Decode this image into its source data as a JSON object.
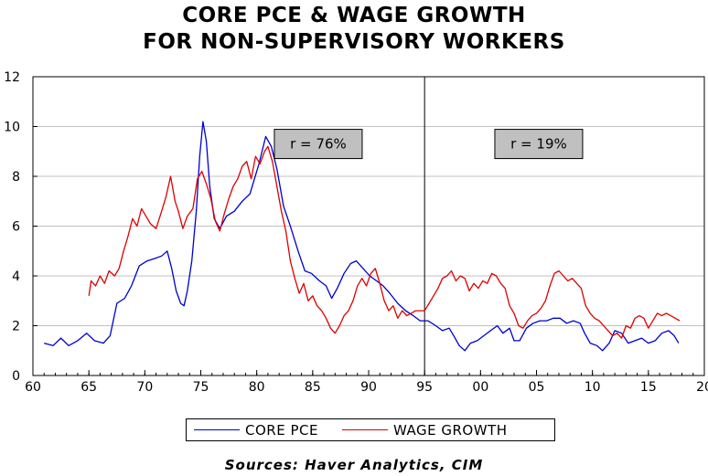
{
  "chart_data": {
    "type": "line",
    "title_lines": [
      "CORE PCE & WAGE GROWTH",
      "FOR NON-SUPERVISORY WORKERS"
    ],
    "xlabel": "",
    "ylabel": "",
    "xlim": [
      1960,
      2020
    ],
    "ylim": [
      0,
      12
    ],
    "x_tick_values": [
      1960,
      1965,
      1970,
      1975,
      1980,
      1985,
      1990,
      1995,
      2000,
      2005,
      2010,
      2015,
      2020
    ],
    "x_tick_labels": [
      "60",
      "65",
      "70",
      "75",
      "80",
      "85",
      "90",
      "95",
      "00",
      "05",
      "10",
      "15",
      "20"
    ],
    "y_ticks": [
      0,
      2,
      4,
      6,
      8,
      10,
      12
    ],
    "grid": true,
    "legend_position": "bottom",
    "divider_x": 1995,
    "annotations": [
      {
        "text": "r = 76%",
        "x": 1985.5,
        "y": 9.3
      },
      {
        "text": "r = 19%",
        "x": 2005.2,
        "y": 9.3
      }
    ],
    "source": "Sources:  Haver Analytics, CIM",
    "series": [
      {
        "name": "CORE PCE",
        "color": "#0000cc",
        "points": [
          [
            1961,
            1.3
          ],
          [
            1961.8,
            1.2
          ],
          [
            1962.5,
            1.5
          ],
          [
            1963.2,
            1.2
          ],
          [
            1964,
            1.4
          ],
          [
            1964.8,
            1.7
          ],
          [
            1965.5,
            1.4
          ],
          [
            1966.3,
            1.3
          ],
          [
            1966.9,
            1.6
          ],
          [
            1967.5,
            2.9
          ],
          [
            1968.2,
            3.1
          ],
          [
            1968.8,
            3.6
          ],
          [
            1969.5,
            4.4
          ],
          [
            1970.2,
            4.6
          ],
          [
            1970.9,
            4.7
          ],
          [
            1971.5,
            4.8
          ],
          [
            1972,
            5.0
          ],
          [
            1972.4,
            4.3
          ],
          [
            1972.8,
            3.4
          ],
          [
            1973.2,
            2.9
          ],
          [
            1973.5,
            2.8
          ],
          [
            1973.8,
            3.4
          ],
          [
            1974.2,
            4.6
          ],
          [
            1974.6,
            6.6
          ],
          [
            1974.9,
            8.8
          ],
          [
            1975.2,
            10.2
          ],
          [
            1975.5,
            9.4
          ],
          [
            1975.8,
            7.6
          ],
          [
            1976.2,
            6.3
          ],
          [
            1976.7,
            5.9
          ],
          [
            1977.3,
            6.4
          ],
          [
            1978,
            6.6
          ],
          [
            1978.7,
            7.0
          ],
          [
            1979.4,
            7.3
          ],
          [
            1980.2,
            8.5
          ],
          [
            1980.8,
            9.6
          ],
          [
            1981.3,
            9.2
          ],
          [
            1981.8,
            8.3
          ],
          [
            1982.4,
            6.8
          ],
          [
            1983,
            6.0
          ],
          [
            1983.7,
            5.0
          ],
          [
            1984.3,
            4.2
          ],
          [
            1984.9,
            4.1
          ],
          [
            1985.6,
            3.8
          ],
          [
            1986.2,
            3.6
          ],
          [
            1986.7,
            3.1
          ],
          [
            1987.2,
            3.5
          ],
          [
            1987.8,
            4.1
          ],
          [
            1988.4,
            4.5
          ],
          [
            1988.9,
            4.6
          ],
          [
            1989.5,
            4.3
          ],
          [
            1990.1,
            4.0
          ],
          [
            1990.7,
            3.8
          ],
          [
            1991.3,
            3.6
          ],
          [
            1991.9,
            3.3
          ],
          [
            1992.6,
            2.9
          ],
          [
            1993.3,
            2.6
          ],
          [
            1994,
            2.4
          ],
          [
            1994.6,
            2.2
          ],
          [
            1995.3,
            2.2
          ],
          [
            1996,
            2.0
          ],
          [
            1996.6,
            1.8
          ],
          [
            1997.2,
            1.9
          ],
          [
            1997.6,
            1.6
          ],
          [
            1998.1,
            1.2
          ],
          [
            1998.6,
            1.0
          ],
          [
            1999.1,
            1.3
          ],
          [
            1999.7,
            1.4
          ],
          [
            2000.3,
            1.6
          ],
          [
            2000.9,
            1.8
          ],
          [
            2001.5,
            2.0
          ],
          [
            2002,
            1.7
          ],
          [
            2002.6,
            1.9
          ],
          [
            2003,
            1.4
          ],
          [
            2003.5,
            1.4
          ],
          [
            2004.1,
            1.9
          ],
          [
            2004.7,
            2.1
          ],
          [
            2005.3,
            2.2
          ],
          [
            2005.9,
            2.2
          ],
          [
            2006.5,
            2.3
          ],
          [
            2007.1,
            2.3
          ],
          [
            2007.7,
            2.1
          ],
          [
            2008.3,
            2.2
          ],
          [
            2008.9,
            2.1
          ],
          [
            2009.3,
            1.7
          ],
          [
            2009.8,
            1.3
          ],
          [
            2010.4,
            1.2
          ],
          [
            2010.9,
            1.0
          ],
          [
            2011.5,
            1.3
          ],
          [
            2012,
            1.8
          ],
          [
            2012.6,
            1.7
          ],
          [
            2013.2,
            1.3
          ],
          [
            2013.8,
            1.4
          ],
          [
            2014.4,
            1.5
          ],
          [
            2015,
            1.3
          ],
          [
            2015.6,
            1.4
          ],
          [
            2016.2,
            1.7
          ],
          [
            2016.8,
            1.8
          ],
          [
            2017.3,
            1.6
          ],
          [
            2017.7,
            1.3
          ]
        ]
      },
      {
        "name": "WAGE GROWTH",
        "color": "#dd0000",
        "points": [
          [
            1965,
            3.2
          ],
          [
            1965.2,
            3.8
          ],
          [
            1965.6,
            3.6
          ],
          [
            1966,
            4.0
          ],
          [
            1966.4,
            3.7
          ],
          [
            1966.8,
            4.2
          ],
          [
            1967.3,
            4.0
          ],
          [
            1967.7,
            4.3
          ],
          [
            1968.1,
            5.0
          ],
          [
            1968.5,
            5.6
          ],
          [
            1968.9,
            6.3
          ],
          [
            1969.3,
            6.0
          ],
          [
            1969.7,
            6.7
          ],
          [
            1970.1,
            6.4
          ],
          [
            1970.5,
            6.1
          ],
          [
            1971,
            5.9
          ],
          [
            1971.5,
            6.6
          ],
          [
            1971.9,
            7.2
          ],
          [
            1972.3,
            8.0
          ],
          [
            1972.7,
            7.0
          ],
          [
            1973,
            6.6
          ],
          [
            1973.4,
            5.9
          ],
          [
            1973.8,
            6.4
          ],
          [
            1974.3,
            6.7
          ],
          [
            1974.7,
            7.9
          ],
          [
            1975.1,
            8.2
          ],
          [
            1975.5,
            7.7
          ],
          [
            1975.9,
            7.1
          ],
          [
            1976.3,
            6.2
          ],
          [
            1976.7,
            5.8
          ],
          [
            1977.1,
            6.5
          ],
          [
            1977.5,
            7.1
          ],
          [
            1977.9,
            7.6
          ],
          [
            1978.3,
            7.9
          ],
          [
            1978.7,
            8.4
          ],
          [
            1979.1,
            8.6
          ],
          [
            1979.5,
            7.9
          ],
          [
            1979.9,
            8.8
          ],
          [
            1980.3,
            8.5
          ],
          [
            1980.7,
            9.0
          ],
          [
            1981,
            9.2
          ],
          [
            1981.4,
            8.6
          ],
          [
            1981.8,
            7.6
          ],
          [
            1982.2,
            6.6
          ],
          [
            1982.6,
            5.8
          ],
          [
            1983,
            4.6
          ],
          [
            1983.4,
            3.9
          ],
          [
            1983.8,
            3.3
          ],
          [
            1984.2,
            3.7
          ],
          [
            1984.6,
            3.0
          ],
          [
            1985,
            3.2
          ],
          [
            1985.4,
            2.8
          ],
          [
            1985.8,
            2.6
          ],
          [
            1986.2,
            2.3
          ],
          [
            1986.6,
            1.9
          ],
          [
            1987,
            1.7
          ],
          [
            1987.4,
            2.0
          ],
          [
            1987.8,
            2.4
          ],
          [
            1988.2,
            2.6
          ],
          [
            1988.6,
            3.0
          ],
          [
            1989,
            3.6
          ],
          [
            1989.4,
            3.9
          ],
          [
            1989.8,
            3.6
          ],
          [
            1990.2,
            4.1
          ],
          [
            1990.6,
            4.3
          ],
          [
            1991,
            3.7
          ],
          [
            1991.4,
            3.0
          ],
          [
            1991.8,
            2.6
          ],
          [
            1992.2,
            2.8
          ],
          [
            1992.6,
            2.3
          ],
          [
            1993,
            2.6
          ],
          [
            1993.4,
            2.4
          ],
          [
            1993.8,
            2.5
          ],
          [
            1994.2,
            2.6
          ],
          [
            1994.6,
            2.6
          ],
          [
            1995,
            2.6
          ],
          [
            1995.4,
            2.9
          ],
          [
            1995.8,
            3.2
          ],
          [
            1996.2,
            3.5
          ],
          [
            1996.6,
            3.9
          ],
          [
            1997,
            4.0
          ],
          [
            1997.4,
            4.2
          ],
          [
            1997.8,
            3.8
          ],
          [
            1998.2,
            4.0
          ],
          [
            1998.6,
            3.9
          ],
          [
            1999,
            3.4
          ],
          [
            1999.4,
            3.7
          ],
          [
            1999.8,
            3.5
          ],
          [
            2000.2,
            3.8
          ],
          [
            2000.6,
            3.7
          ],
          [
            2001,
            4.1
          ],
          [
            2001.4,
            4.0
          ],
          [
            2001.8,
            3.7
          ],
          [
            2002.2,
            3.5
          ],
          [
            2002.6,
            2.8
          ],
          [
            2003,
            2.5
          ],
          [
            2003.4,
            2.0
          ],
          [
            2003.8,
            1.9
          ],
          [
            2004.2,
            2.2
          ],
          [
            2004.6,
            2.4
          ],
          [
            2005,
            2.5
          ],
          [
            2005.4,
            2.7
          ],
          [
            2005.8,
            3.0
          ],
          [
            2006.2,
            3.6
          ],
          [
            2006.6,
            4.1
          ],
          [
            2007,
            4.2
          ],
          [
            2007.4,
            4.0
          ],
          [
            2007.8,
            3.8
          ],
          [
            2008.2,
            3.9
          ],
          [
            2008.6,
            3.7
          ],
          [
            2009,
            3.5
          ],
          [
            2009.4,
            2.8
          ],
          [
            2009.8,
            2.5
          ],
          [
            2010.2,
            2.3
          ],
          [
            2010.6,
            2.2
          ],
          [
            2011,
            2.0
          ],
          [
            2011.4,
            1.8
          ],
          [
            2011.8,
            1.6
          ],
          [
            2012.2,
            1.7
          ],
          [
            2012.6,
            1.5
          ],
          [
            2013,
            2.0
          ],
          [
            2013.4,
            1.9
          ],
          [
            2013.8,
            2.3
          ],
          [
            2014.2,
            2.4
          ],
          [
            2014.6,
            2.3
          ],
          [
            2015,
            1.9
          ],
          [
            2015.4,
            2.2
          ],
          [
            2015.8,
            2.5
          ],
          [
            2016.2,
            2.4
          ],
          [
            2016.6,
            2.5
          ],
          [
            2017,
            2.4
          ],
          [
            2017.4,
            2.3
          ],
          [
            2017.8,
            2.2
          ]
        ]
      }
    ]
  }
}
